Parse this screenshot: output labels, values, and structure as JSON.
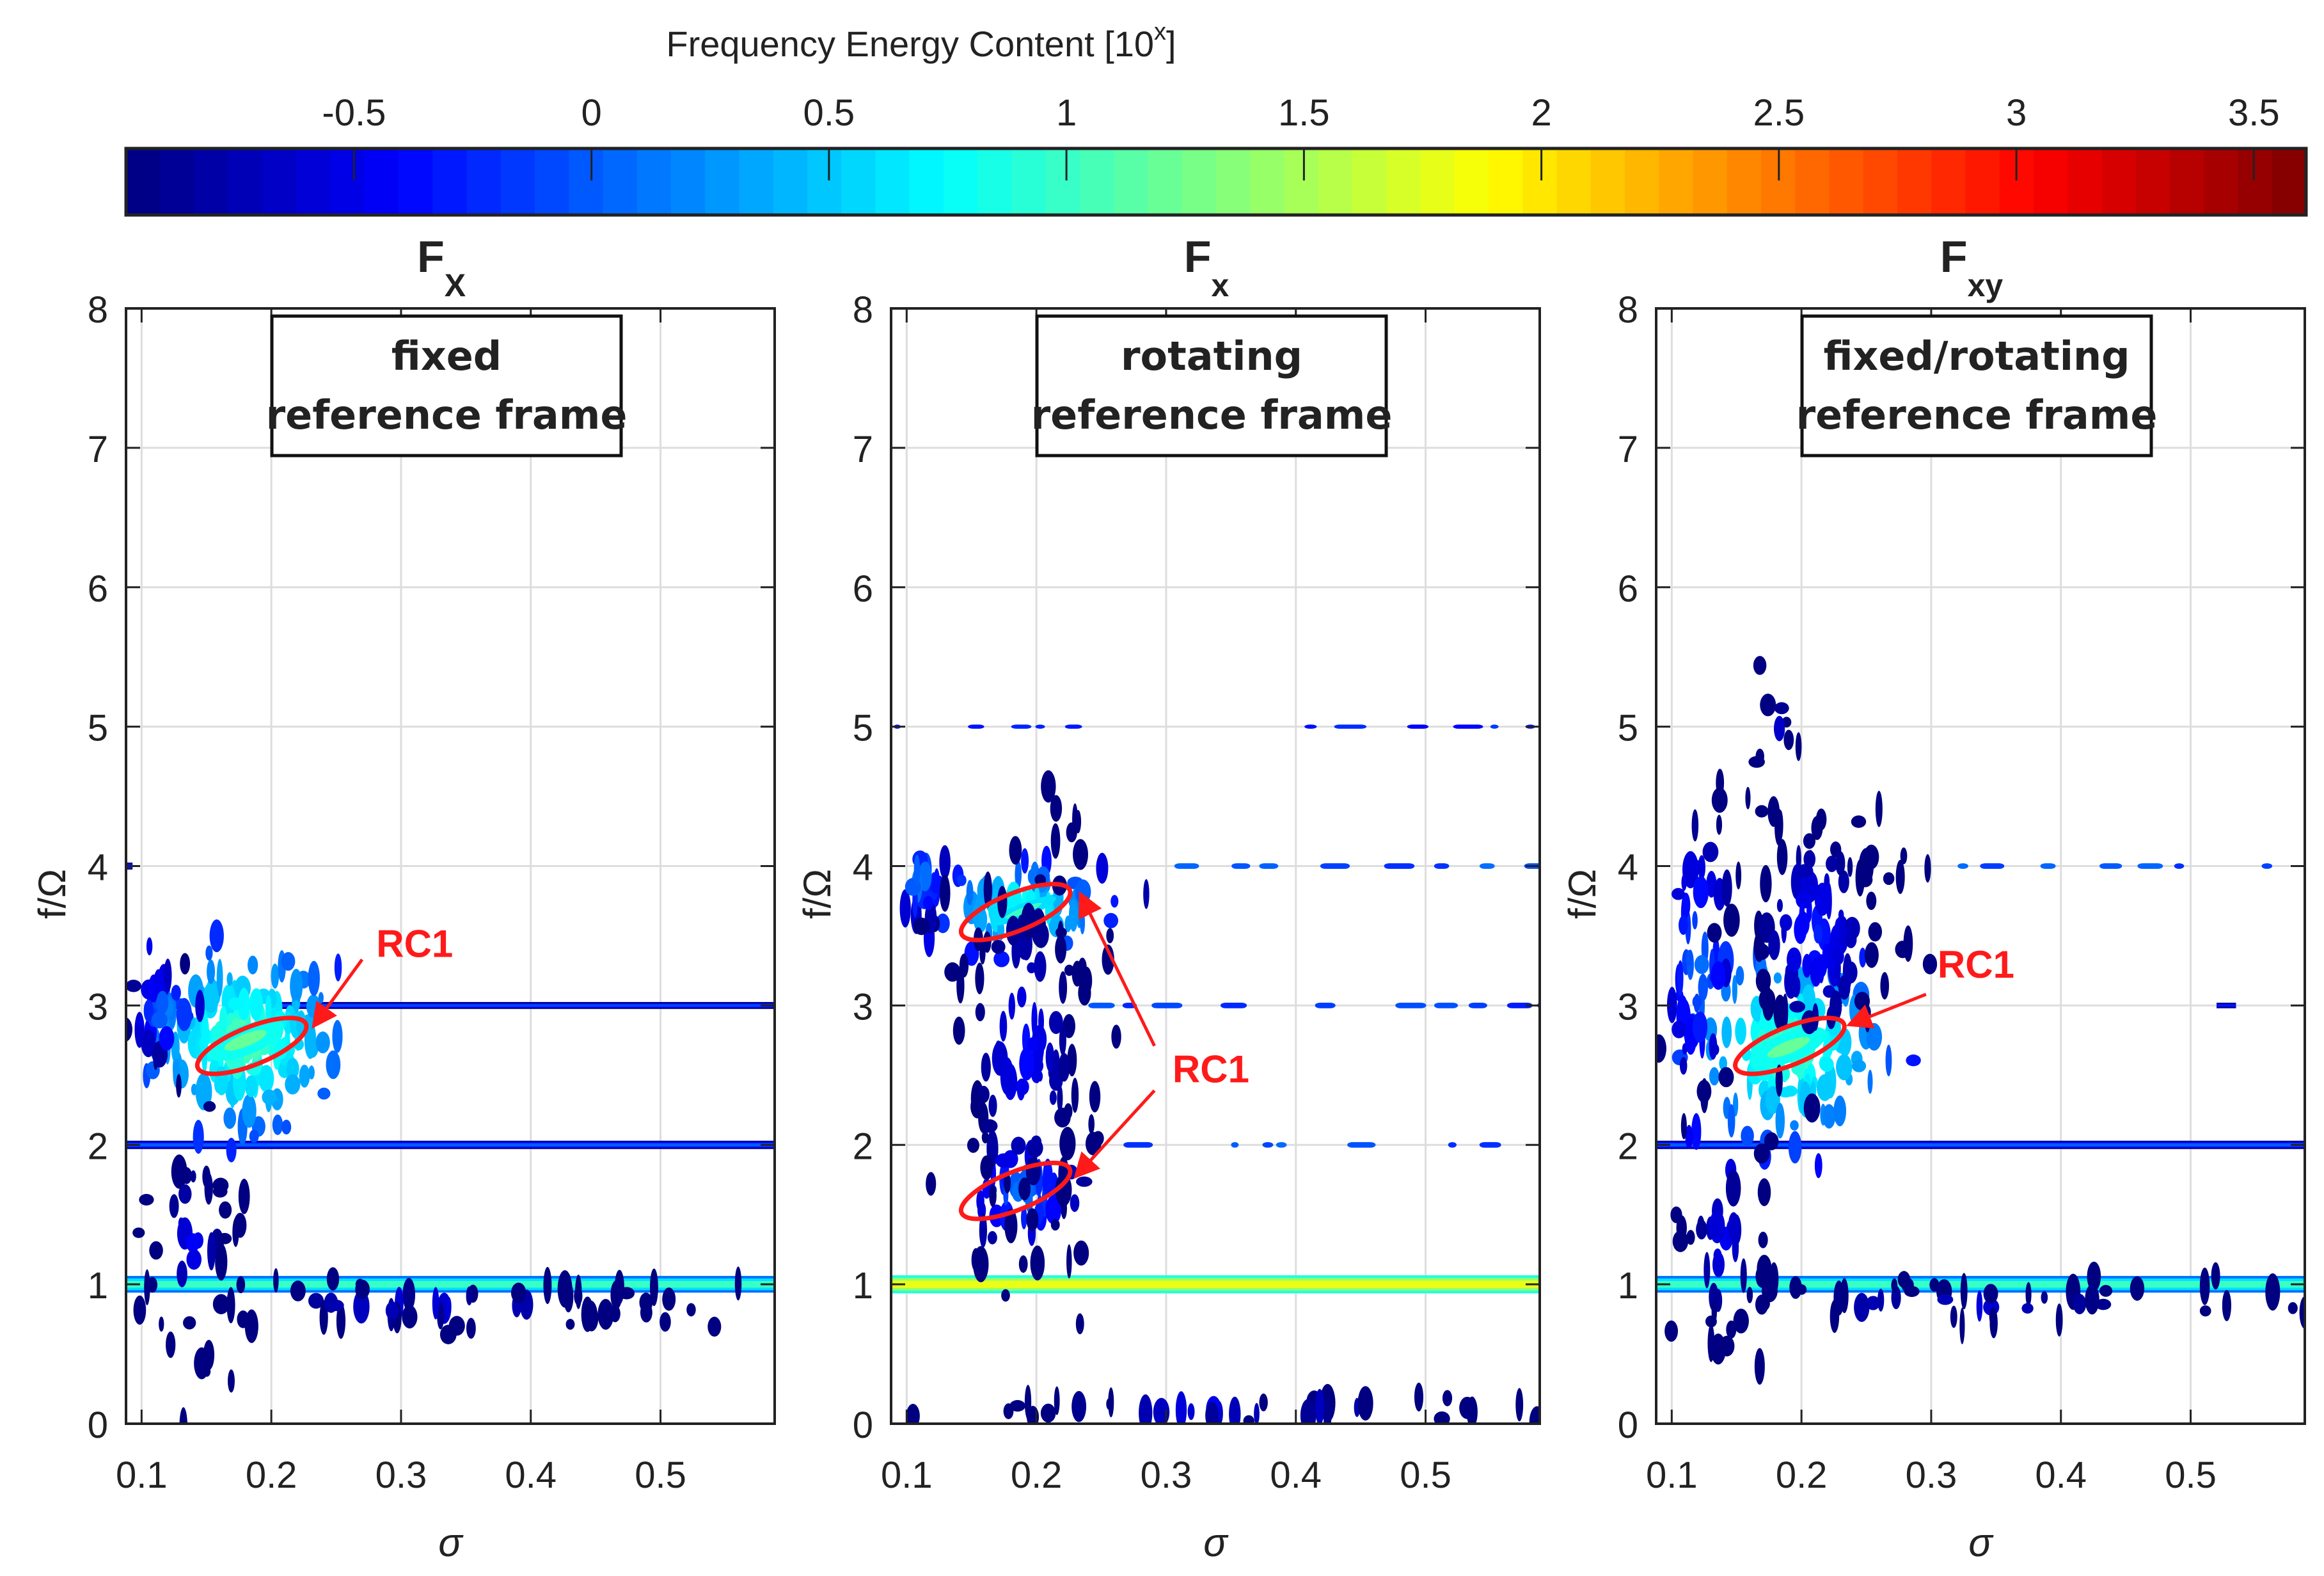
{
  "chart_data": {
    "type": "heatmap",
    "colorbar": {
      "title": "Frequency Energy Content [10",
      "title_sup": "x",
      "title_end": "]",
      "range": [
        -0.98,
        3.61
      ],
      "ticks": [
        -0.5,
        0,
        0.5,
        1,
        1.5,
        2,
        2.5,
        3,
        3.5
      ],
      "tick_labels": [
        "-0.5",
        "0",
        "0.5",
        "1",
        "1.5",
        "2",
        "2.5",
        "3",
        "3.5"
      ],
      "colormap": "jet"
    },
    "xlabel": "σ",
    "ylabel": "f/Ω",
    "xlim": [
      0.088,
      0.588
    ],
    "ylim": [
      0,
      8
    ],
    "xticks": [
      0.1,
      0.2,
      0.3,
      0.4,
      0.5
    ],
    "xtick_labels": [
      "0.1",
      "0.2",
      "0.3",
      "0.4",
      "0.5"
    ],
    "yticks": [
      0,
      1,
      2,
      3,
      4,
      5,
      6,
      7,
      8
    ],
    "ytick_labels": [
      "0",
      "1",
      "2",
      "3",
      "4",
      "5",
      "6",
      "7",
      "8"
    ],
    "grid": true,
    "panels": [
      {
        "title": "F",
        "title_sub": "X",
        "box_lines": [
          "fixed",
          "reference frame"
        ],
        "bands": [
          {
            "f": 1,
            "sigma": [
              0.088,
              0.588
            ],
            "value": 1.0,
            "width": 0.12
          },
          {
            "f": 2,
            "sigma": [
              0.088,
              0.588
            ],
            "value": 0.0,
            "width": 0.06
          },
          {
            "f": 3,
            "sigma": [
              0.2,
              0.588
            ],
            "value": -0.1,
            "width": 0.05
          },
          {
            "f": 4,
            "sigma": [
              0.088,
              0.093
            ],
            "value": -0.2,
            "width": 0.05
          }
        ],
        "clusters": [
          {
            "sigma": 0.18,
            "f": 2.75,
            "s_sigma": 0.035,
            "s_f": 0.3,
            "value": 1.2,
            "n": 160
          },
          {
            "sigma": 0.12,
            "f": 2.95,
            "s_sigma": 0.015,
            "s_f": 0.15,
            "value": 0.3,
            "n": 30
          },
          {
            "sigma": 0.14,
            "f": 1.3,
            "s_sigma": 0.02,
            "s_f": 0.5,
            "value": -0.4,
            "n": 40
          },
          {
            "sigma": 0.32,
            "f": 0.85,
            "s_sigma": 0.15,
            "s_f": 0.1,
            "value": -0.5,
            "n": 60
          }
        ],
        "annotations": [
          {
            "label": "RC1",
            "text_at": [
              0.276,
              3.45
            ],
            "ellipse": {
              "sigma": 0.185,
              "f": 2.71,
              "rs": 0.045,
              "rf": 0.3,
              "angle": -22
            },
            "arrows": [
              [
                [
                  0.27,
                  3.33
                ],
                [
                  0.234,
                  2.87
                ]
              ]
            ]
          }
        ]
      },
      {
        "title": "F",
        "title_sub": "x",
        "box_lines": [
          "rotating",
          "reference frame"
        ],
        "bands": [
          {
            "f": 1,
            "sigma": [
              0.088,
              0.588
            ],
            "value": 1.8,
            "width": 0.13
          },
          {
            "f": 2,
            "sigma": [
              0.24,
              0.588
            ],
            "value": -0.2,
            "width": 0.04,
            "dashed": true
          },
          {
            "f": 3,
            "sigma": [
              0.24,
              0.588
            ],
            "value": -0.3,
            "width": 0.04,
            "dashed": true
          },
          {
            "f": 4,
            "sigma": [
              0.25,
              0.588
            ],
            "value": -0.2,
            "width": 0.04,
            "dashed": true
          },
          {
            "f": 5,
            "sigma": [
              0.09,
              0.588
            ],
            "value": -0.4,
            "width": 0.03,
            "dashed": true
          }
        ],
        "clusters": [
          {
            "sigma": 0.19,
            "f": 3.68,
            "s_sigma": 0.03,
            "s_f": 0.15,
            "value": 1.0,
            "n": 70
          },
          {
            "sigma": 0.11,
            "f": 3.9,
            "s_sigma": 0.012,
            "s_f": 0.15,
            "value": 0.3,
            "n": 20
          },
          {
            "sigma": 0.19,
            "f": 1.65,
            "s_sigma": 0.025,
            "s_f": 0.2,
            "value": 0.2,
            "n": 50
          },
          {
            "sigma": 0.19,
            "f": 2.7,
            "s_sigma": 0.03,
            "s_f": 0.8,
            "value": -0.3,
            "n": 120
          },
          {
            "sigma": 0.36,
            "f": 0.1,
            "s_sigma": 0.16,
            "s_f": 0.05,
            "value": -0.4,
            "n": 40
          }
        ],
        "annotations": [
          {
            "label": "RC1",
            "text_at": [
              0.3,
              2.55
            ],
            "ellipse": {
              "sigma": 0.184,
              "f": 3.67,
              "rs": 0.045,
              "rf": 0.3,
              "angle": -22
            },
            "arrows": [
              [
                [
                  0.291,
                  2.71
                ],
                [
                  0.235,
                  3.78
                ]
              ],
              [
                [
                  0.291,
                  2.39
                ],
                [
                  0.232,
                  1.79
                ]
              ]
            ]
          },
          {
            "label": "",
            "ellipse": {
              "sigma": 0.184,
              "f": 1.67,
              "rs": 0.045,
              "rf": 0.3,
              "angle": -22
            },
            "arrows": []
          }
        ]
      },
      {
        "title": "F",
        "title_sub": "xy",
        "box_lines": [
          "fixed/rotating",
          "reference frame"
        ],
        "bands": [
          {
            "f": 1,
            "sigma": [
              0.088,
              0.588
            ],
            "value": 1.0,
            "width": 0.12
          },
          {
            "f": 2,
            "sigma": [
              0.088,
              0.588
            ],
            "value": 0.0,
            "width": 0.06
          },
          {
            "f": 4,
            "sigma": [
              0.29,
              0.588
            ],
            "value": -0.2,
            "width": 0.04,
            "dashed": true
          },
          {
            "f": 3,
            "sigma": [
              0.52,
              0.535
            ],
            "value": -0.3,
            "width": 0.04
          }
        ],
        "clusters": [
          {
            "sigma": 0.19,
            "f": 2.7,
            "s_sigma": 0.035,
            "s_f": 0.3,
            "value": 1.2,
            "n": 150
          },
          {
            "sigma": 0.12,
            "f": 3.3,
            "s_sigma": 0.015,
            "s_f": 0.5,
            "value": 0.2,
            "n": 50
          },
          {
            "sigma": 0.21,
            "f": 3.5,
            "s_sigma": 0.03,
            "s_f": 0.5,
            "value": -0.2,
            "n": 110
          },
          {
            "sigma": 0.18,
            "f": 4.9,
            "s_sigma": 0.008,
            "s_f": 0.35,
            "value": -0.4,
            "n": 10
          },
          {
            "sigma": 0.14,
            "f": 1.3,
            "s_sigma": 0.02,
            "s_f": 0.5,
            "value": -0.4,
            "n": 40
          },
          {
            "sigma": 0.32,
            "f": 0.85,
            "s_sigma": 0.15,
            "s_f": 0.1,
            "value": -0.5,
            "n": 60
          }
        ],
        "annotations": [
          {
            "label": "RC1",
            "text_at": [
              0.3,
              3.3
            ],
            "ellipse": {
              "sigma": 0.191,
              "f": 2.71,
              "rs": 0.045,
              "rf": 0.3,
              "angle": -22
            },
            "arrows": [
              [
                [
                  0.296,
                  3.08
                ],
                [
                  0.239,
                  2.87
                ]
              ]
            ]
          }
        ]
      }
    ]
  }
}
